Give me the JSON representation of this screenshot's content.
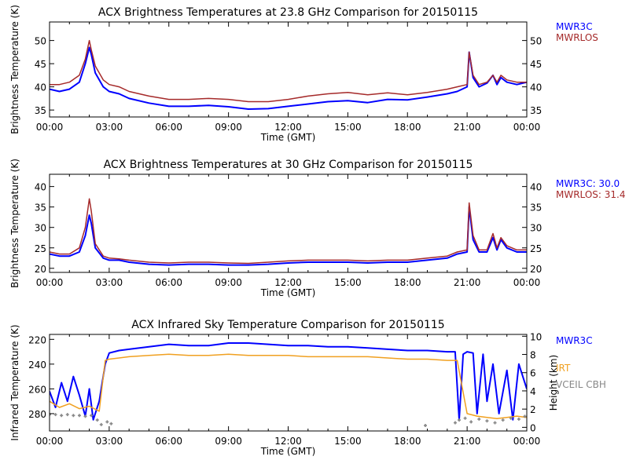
{
  "chart_data": [
    {
      "type": "line",
      "title": "ACX  Brightness Temperatures at 23.8 GHz Comparison for 20150115",
      "xlabel": "Time (GMT)",
      "ylabel": "Brightness Temperature (K)",
      "xlim": [
        0,
        24
      ],
      "ylim": [
        33.5,
        54
      ],
      "x_ticks": [
        "00:00",
        "03:00",
        "06:00",
        "09:00",
        "12:00",
        "15:00",
        "18:00",
        "21:00",
        "00:00"
      ],
      "y_ticks": [
        35,
        40,
        45,
        50
      ],
      "legend": {
        "position": "right-top"
      },
      "series": [
        {
          "name": "MWR3C",
          "color": "#0000ff",
          "x": [
            0,
            0.5,
            1,
            1.5,
            1.8,
            2.0,
            2.1,
            2.3,
            2.7,
            3.0,
            3.5,
            4.0,
            5.0,
            6.0,
            7.0,
            8.0,
            9.0,
            10.0,
            11.0,
            12.0,
            13.0,
            14.0,
            15.0,
            16.0,
            17.0,
            18.0,
            19.0,
            20.0,
            20.5,
            21.0,
            21.1,
            21.3,
            21.6,
            22.0,
            22.3,
            22.5,
            22.7,
            23.0,
            23.5,
            24.0
          ],
          "y": [
            39.5,
            39.0,
            39.5,
            41.0,
            45.0,
            48.5,
            47.0,
            43.0,
            40.0,
            39.0,
            38.5,
            37.5,
            36.5,
            35.8,
            35.8,
            36.0,
            35.7,
            35.2,
            35.3,
            35.8,
            36.3,
            36.8,
            37.0,
            36.6,
            37.3,
            37.2,
            37.8,
            38.5,
            39.0,
            40.0,
            47.5,
            42.0,
            40.0,
            40.8,
            42.5,
            40.5,
            42.0,
            41.0,
            40.5,
            41.0
          ]
        },
        {
          "name": "MWRLOS",
          "color": "#a52a2a",
          "x": [
            0,
            0.5,
            1,
            1.5,
            1.8,
            2.0,
            2.1,
            2.3,
            2.7,
            3.0,
            3.5,
            4.0,
            5.0,
            6.0,
            7.0,
            8.0,
            9.0,
            10.0,
            11.0,
            12.0,
            13.0,
            14.0,
            15.0,
            16.0,
            17.0,
            18.0,
            19.0,
            20.0,
            20.5,
            21.0,
            21.1,
            21.3,
            21.6,
            22.0,
            22.3,
            22.5,
            22.7,
            23.0,
            23.5,
            24.0
          ],
          "y": [
            40.5,
            40.5,
            41.0,
            42.5,
            46.0,
            50.0,
            48.0,
            44.5,
            41.5,
            40.5,
            40.0,
            39.0,
            38.0,
            37.3,
            37.3,
            37.5,
            37.3,
            36.8,
            36.8,
            37.3,
            38.0,
            38.5,
            38.8,
            38.3,
            38.7,
            38.3,
            38.8,
            39.5,
            40.0,
            40.5,
            47.5,
            42.5,
            40.5,
            41.0,
            42.5,
            41.0,
            42.5,
            41.5,
            41.0,
            41.0
          ]
        }
      ]
    },
    {
      "type": "line",
      "title": "ACX  Brightness Temperatures at 30 GHz Comparison for 20150115",
      "xlabel": "Time (GMT)",
      "ylabel": "Brightness Temperature (K)",
      "xlim": [
        0,
        24
      ],
      "ylim": [
        19,
        43
      ],
      "x_ticks": [
        "00:00",
        "03:00",
        "06:00",
        "09:00",
        "12:00",
        "15:00",
        "18:00",
        "21:00",
        "00:00"
      ],
      "y_ticks": [
        20,
        25,
        30,
        35,
        40
      ],
      "legend": {
        "position": "right-top"
      },
      "series": [
        {
          "name": "MWR3C: 30.0",
          "color": "#0000ff",
          "x": [
            0,
            0.5,
            1,
            1.5,
            1.8,
            2.0,
            2.1,
            2.3,
            2.7,
            3.0,
            3.5,
            4.0,
            5.0,
            6.0,
            7.0,
            8.0,
            9.0,
            10.0,
            11.0,
            12.0,
            13.0,
            14.0,
            15.0,
            16.0,
            17.0,
            18.0,
            19.0,
            20.0,
            20.5,
            21.0,
            21.1,
            21.3,
            21.6,
            22.0,
            22.3,
            22.5,
            22.7,
            23.0,
            23.5,
            24.0
          ],
          "y": [
            23.5,
            23.0,
            23.0,
            24.0,
            28.0,
            33.0,
            31.0,
            25.0,
            22.5,
            22.0,
            22.0,
            21.5,
            21.0,
            20.8,
            21.0,
            21.0,
            20.8,
            20.8,
            21.0,
            21.3,
            21.5,
            21.5,
            21.5,
            21.3,
            21.5,
            21.5,
            22.0,
            22.5,
            23.5,
            24.0,
            35.0,
            27.0,
            24.0,
            24.0,
            27.5,
            24.5,
            27.0,
            25.0,
            24.0,
            24.0
          ]
        },
        {
          "name": "MWRLOS: 31.4",
          "color": "#a52a2a",
          "x": [
            0,
            0.5,
            1,
            1.5,
            1.8,
            2.0,
            2.1,
            2.3,
            2.7,
            3.0,
            3.5,
            4.0,
            5.0,
            6.0,
            7.0,
            8.0,
            9.0,
            10.0,
            11.0,
            12.0,
            13.0,
            14.0,
            15.0,
            16.0,
            17.0,
            18.0,
            19.0,
            20.0,
            20.5,
            21.0,
            21.1,
            21.3,
            21.6,
            22.0,
            22.3,
            22.5,
            22.7,
            23.0,
            23.5,
            24.0
          ],
          "y": [
            24.0,
            23.5,
            23.5,
            25.0,
            30.0,
            37.0,
            34.0,
            26.0,
            23.0,
            22.5,
            22.3,
            22.0,
            21.5,
            21.3,
            21.5,
            21.5,
            21.3,
            21.2,
            21.5,
            21.8,
            22.0,
            22.0,
            22.0,
            21.8,
            22.0,
            22.0,
            22.5,
            23.0,
            24.0,
            24.5,
            36.0,
            28.0,
            24.5,
            24.5,
            28.5,
            25.0,
            27.5,
            25.5,
            24.5,
            24.5
          ]
        }
      ]
    },
    {
      "type": "line",
      "title": "ACX  Infrared Sky Temperature Comparison for 20150115",
      "xlabel": "Time (GMT)",
      "ylabel": "Infrared Temperature (K)",
      "y2label": "Height (km)",
      "xlim": [
        0,
        24
      ],
      "ylim": [
        294,
        216
      ],
      "y2lim": [
        -0.4,
        10.2
      ],
      "x_ticks": [
        "00:00",
        "03:00",
        "06:00",
        "09:00",
        "12:00",
        "15:00",
        "18:00",
        "21:00",
        "00:00"
      ],
      "y_ticks": [
        220,
        240,
        260,
        280
      ],
      "y2_ticks": [
        0,
        2,
        4,
        6,
        8,
        10
      ],
      "legend": {
        "position": "right"
      },
      "series": [
        {
          "name": "MWR3C",
          "color": "#0000ff",
          "x": [
            0,
            0.3,
            0.6,
            0.9,
            1.2,
            1.5,
            1.8,
            2.0,
            2.2,
            2.5,
            2.8,
            3.0,
            3.5,
            4.0,
            5.0,
            6.0,
            7.0,
            8.0,
            9.0,
            10.0,
            11.0,
            12.0,
            13.0,
            14.0,
            15.0,
            16.0,
            17.0,
            18.0,
            19.0,
            20.0,
            20.4,
            20.6,
            20.8,
            21.0,
            21.3,
            21.5,
            21.8,
            22.0,
            22.3,
            22.6,
            23.0,
            23.3,
            23.6,
            24.0
          ],
          "y": [
            262,
            275,
            255,
            270,
            250,
            265,
            282,
            260,
            285,
            270,
            240,
            231,
            229,
            228,
            226,
            224,
            225,
            225,
            223,
            223,
            224,
            225,
            225,
            226,
            226,
            227,
            228,
            229,
            229,
            230,
            230,
            285,
            232,
            230,
            231,
            280,
            232,
            270,
            240,
            280,
            245,
            285,
            240,
            260
          ]
        },
        {
          "name": "IRT",
          "color": "#f0a020",
          "x": [
            0,
            0.5,
            1.0,
            1.5,
            2.0,
            2.5,
            2.8,
            3.0,
            3.5,
            4.0,
            5.0,
            6.0,
            7.0,
            8.0,
            9.0,
            10.0,
            11.0,
            12.0,
            13.0,
            14.0,
            15.0,
            16.0,
            17.0,
            18.0,
            19.0,
            20.0,
            20.5,
            21.0,
            21.5,
            22.0,
            22.5,
            23.0,
            23.5,
            24.0
          ],
          "y": [
            270,
            275,
            272,
            276,
            274,
            278,
            237,
            236,
            235,
            234,
            233,
            232,
            233,
            233,
            232,
            233,
            233,
            233,
            234,
            234,
            234,
            234,
            235,
            236,
            236,
            237,
            237,
            280,
            282,
            283,
            284,
            283,
            282,
            283
          ]
        },
        {
          "name": "VCEIL CBH",
          "color": "#888888",
          "axis": "y2",
          "style": "markers",
          "x": [
            0.0,
            0.3,
            0.6,
            0.9,
            1.2,
            1.5,
            1.8,
            2.1,
            2.4,
            2.6,
            2.9,
            3.1,
            18.9,
            20.4,
            20.6,
            20.9,
            21.2,
            21.6,
            22.0,
            22.4,
            22.8,
            23.2,
            23.6,
            23.9
          ],
          "y": [
            1.4,
            1.4,
            1.3,
            1.4,
            1.3,
            1.3,
            1.2,
            1.3,
            0.8,
            0.3,
            0.6,
            0.4,
            0.2,
            0.5,
            0.8,
            1.0,
            0.6,
            0.9,
            0.7,
            0.5,
            0.8,
            1.0,
            0.9,
            1.2
          ]
        }
      ]
    }
  ]
}
